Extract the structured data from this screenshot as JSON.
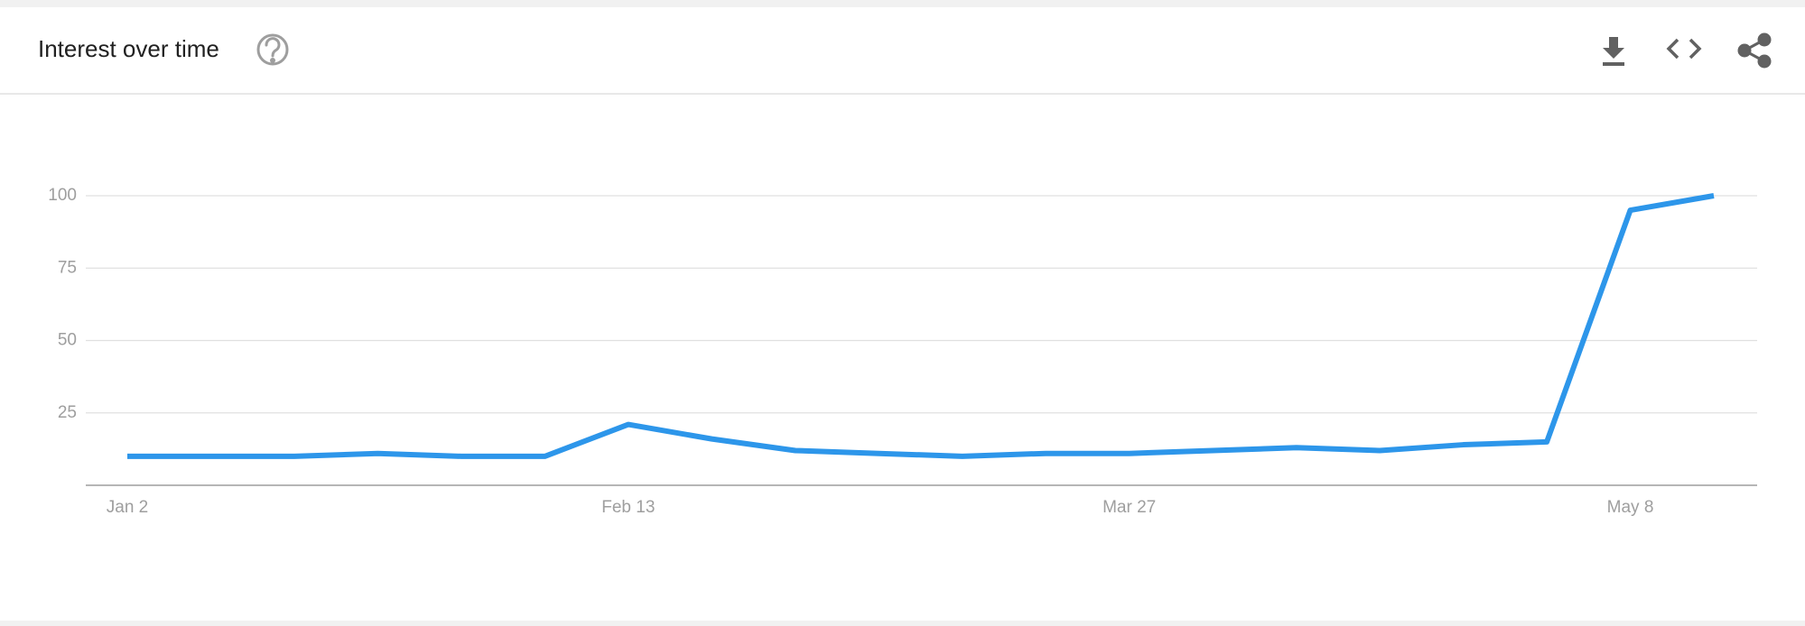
{
  "chart_data": {
    "type": "line",
    "title": "Interest over time",
    "categories": [
      "Jan 2",
      null,
      null,
      null,
      null,
      null,
      "Feb 13",
      null,
      null,
      null,
      null,
      null,
      "Mar 27",
      null,
      null,
      null,
      null,
      null,
      "May 8",
      null
    ],
    "series": [
      {
        "name": "Interest",
        "color": "#2d96ea",
        "values": [
          10,
          10,
          10,
          11,
          10,
          10,
          21,
          16,
          12,
          11,
          10,
          11,
          11,
          12,
          13,
          12,
          14,
          15,
          95,
          100
        ]
      }
    ],
    "ylim": [
      0,
      100
    ],
    "yticks": [
      25,
      50,
      75,
      100
    ],
    "grid": true
  }
}
